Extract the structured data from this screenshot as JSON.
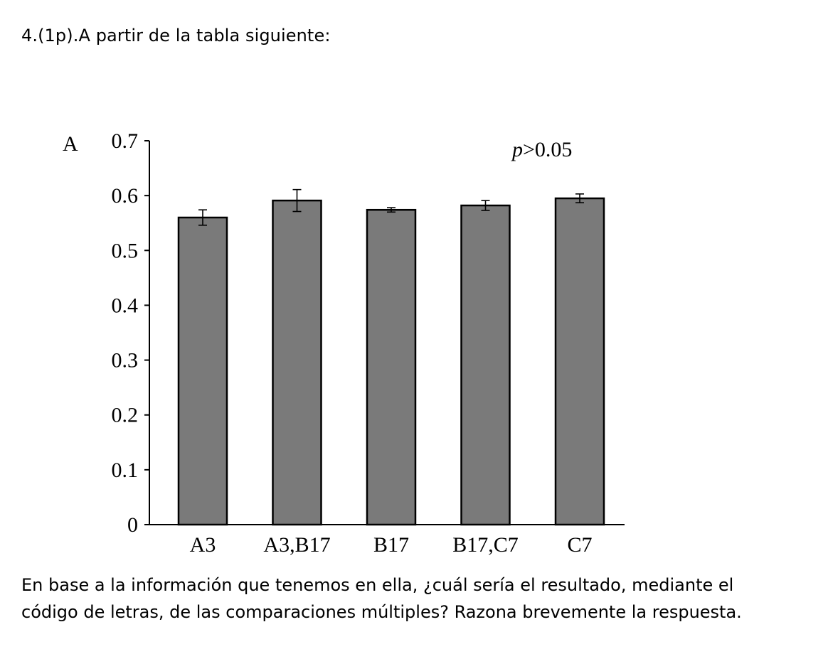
{
  "question": {
    "title": "4.(1p).A partir de la tabla siguiente:",
    "body_line1": "En base a la información que tenemos en ella, ¿cuál sería el resultado, mediante el",
    "body_line2": "código de letras, de las comparaciones múltiples? Razona brevemente la respuesta."
  },
  "chart_data": {
    "type": "bar",
    "panel_label": "A",
    "annotation": "p>0.05",
    "categories": [
      "A3",
      "A3,B17",
      "B17",
      "B17,C7",
      "C7"
    ],
    "values": [
      0.56,
      0.591,
      0.574,
      0.582,
      0.595
    ],
    "errors": [
      0.014,
      0.02,
      0.004,
      0.009,
      0.008
    ],
    "ylim": [
      0,
      0.7
    ],
    "yticks": [
      "0",
      "0.1",
      "0.2",
      "0.3",
      "0.4",
      "0.5",
      "0.6",
      "0.7"
    ],
    "bar_color": "#7a7a7a",
    "grid": false
  }
}
